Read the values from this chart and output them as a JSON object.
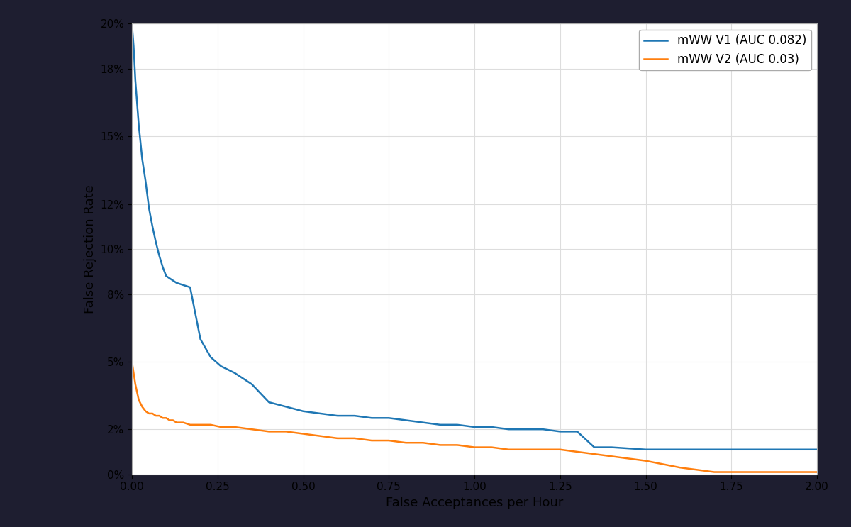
{
  "title": "",
  "xlabel": "False Acceptances per Hour",
  "ylabel": "False Rejection Rate",
  "xlim": [
    0,
    2.0
  ],
  "ylim": [
    0,
    0.2
  ],
  "background_color": "#ffffff",
  "outer_background": "#1e1e30",
  "v1_color": "#1f77b4",
  "v2_color": "#ff7f0e",
  "v1_label": "mWW V1 (AUC 0.082)",
  "v2_label": "mWW V2 (AUC 0.03)",
  "yticks": [
    0.0,
    0.02,
    0.05,
    0.08,
    0.1,
    0.12,
    0.15,
    0.18,
    0.2
  ],
  "ytick_labels": [
    "0%",
    "2%",
    "5%",
    "8%",
    "10%",
    "12%",
    "15%",
    "18%",
    "20%"
  ],
  "xticks": [
    0.0,
    0.25,
    0.5,
    0.75,
    1.0,
    1.25,
    1.5,
    1.75,
    2.0
  ],
  "xtick_labels": [
    "0.00",
    "0.25",
    "0.50",
    "0.75",
    "1.00",
    "1.25",
    "1.50",
    "1.75",
    "2.00"
  ],
  "v1_x": [
    0.0,
    0.005,
    0.01,
    0.02,
    0.03,
    0.04,
    0.05,
    0.06,
    0.07,
    0.08,
    0.09,
    0.1,
    0.11,
    0.12,
    0.13,
    0.15,
    0.17,
    0.2,
    0.23,
    0.26,
    0.3,
    0.35,
    0.4,
    0.45,
    0.5,
    0.55,
    0.6,
    0.65,
    0.7,
    0.75,
    0.8,
    0.85,
    0.9,
    0.95,
    1.0,
    1.05,
    1.1,
    1.15,
    1.2,
    1.25,
    1.3,
    1.35,
    1.4,
    1.5,
    1.6,
    1.7,
    1.8,
    1.9,
    2.0
  ],
  "v1_y": [
    0.2,
    0.19,
    0.175,
    0.155,
    0.14,
    0.13,
    0.118,
    0.11,
    0.103,
    0.097,
    0.092,
    0.088,
    0.087,
    0.086,
    0.085,
    0.084,
    0.083,
    0.06,
    0.052,
    0.048,
    0.045,
    0.04,
    0.032,
    0.03,
    0.028,
    0.027,
    0.026,
    0.026,
    0.025,
    0.025,
    0.024,
    0.023,
    0.022,
    0.022,
    0.021,
    0.021,
    0.02,
    0.02,
    0.02,
    0.019,
    0.019,
    0.012,
    0.012,
    0.011,
    0.011,
    0.011,
    0.011,
    0.011,
    0.011
  ],
  "v2_x": [
    0.0,
    0.005,
    0.01,
    0.02,
    0.03,
    0.04,
    0.05,
    0.06,
    0.07,
    0.08,
    0.09,
    0.1,
    0.11,
    0.12,
    0.13,
    0.15,
    0.17,
    0.2,
    0.23,
    0.26,
    0.3,
    0.35,
    0.4,
    0.45,
    0.5,
    0.55,
    0.6,
    0.65,
    0.7,
    0.75,
    0.8,
    0.85,
    0.9,
    0.95,
    1.0,
    1.05,
    1.1,
    1.15,
    1.2,
    1.25,
    1.3,
    1.4,
    1.5,
    1.6,
    1.65,
    1.7,
    1.75,
    1.8,
    1.9,
    2.0
  ],
  "v2_y": [
    0.05,
    0.045,
    0.04,
    0.033,
    0.03,
    0.028,
    0.027,
    0.027,
    0.026,
    0.026,
    0.025,
    0.025,
    0.024,
    0.024,
    0.023,
    0.023,
    0.022,
    0.022,
    0.022,
    0.021,
    0.021,
    0.02,
    0.019,
    0.019,
    0.018,
    0.017,
    0.016,
    0.016,
    0.015,
    0.015,
    0.014,
    0.014,
    0.013,
    0.013,
    0.012,
    0.012,
    0.011,
    0.011,
    0.011,
    0.011,
    0.01,
    0.008,
    0.006,
    0.003,
    0.002,
    0.001,
    0.001,
    0.001,
    0.001,
    0.001
  ]
}
